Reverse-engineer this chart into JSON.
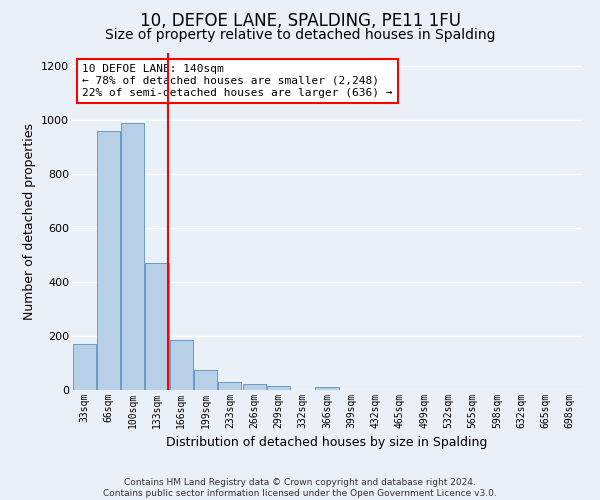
{
  "title": "10, DEFOE LANE, SPALDING, PE11 1FU",
  "subtitle": "Size of property relative to detached houses in Spalding",
  "xlabel": "Distribution of detached houses by size in Spalding",
  "ylabel": "Number of detached properties",
  "categories": [
    "33sqm",
    "66sqm",
    "100sqm",
    "133sqm",
    "166sqm",
    "199sqm",
    "233sqm",
    "266sqm",
    "299sqm",
    "332sqm",
    "366sqm",
    "399sqm",
    "432sqm",
    "465sqm",
    "499sqm",
    "532sqm",
    "565sqm",
    "598sqm",
    "632sqm",
    "665sqm",
    "698sqm"
  ],
  "values": [
    170,
    960,
    990,
    470,
    185,
    75,
    28,
    22,
    15,
    0,
    12,
    0,
    0,
    0,
    0,
    0,
    0,
    0,
    0,
    0,
    0
  ],
  "bar_color": "#b8cfe8",
  "bar_edge_color": "#5a8fc0",
  "vline_x_index": 3,
  "vline_color": "red",
  "annotation_text": "10 DEFOE LANE: 140sqm\n← 78% of detached houses are smaller (2,248)\n22% of semi-detached houses are larger (636) →",
  "annotation_box_color": "white",
  "annotation_box_edge": "red",
  "ylim": [
    0,
    1250
  ],
  "yticks": [
    0,
    200,
    400,
    600,
    800,
    1000,
    1200
  ],
  "background_color": "#eaf0f8",
  "grid_color": "white",
  "footer": "Contains HM Land Registry data © Crown copyright and database right 2024.\nContains public sector information licensed under the Open Government Licence v3.0.",
  "title_fontsize": 12,
  "subtitle_fontsize": 10,
  "ylabel_fontsize": 9,
  "xlabel_fontsize": 9,
  "annotation_fontsize": 8
}
